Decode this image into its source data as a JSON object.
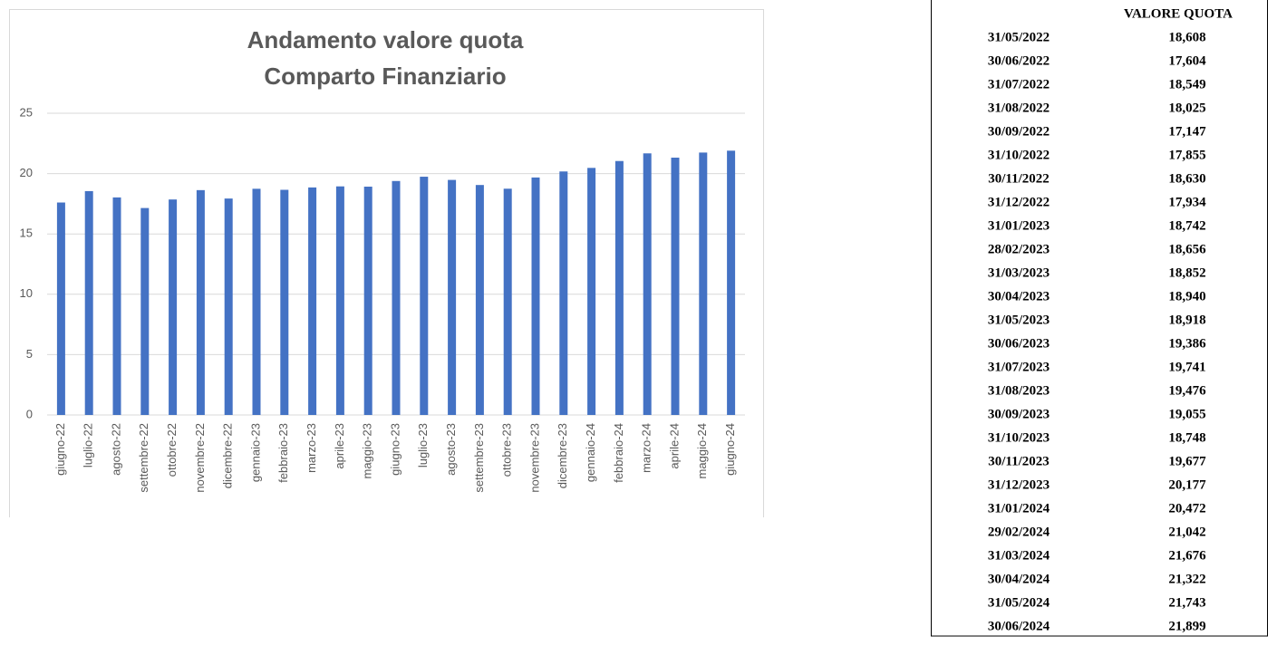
{
  "chart_data": {
    "type": "bar",
    "title": [
      "Andamento valore quota",
      "Comparto Finanziario"
    ],
    "categories": [
      "giugno-22",
      "luglio-22",
      "agosto-22",
      "settembre-22",
      "ottobre-22",
      "novembre-22",
      "dicembre-22",
      "gennaio-23",
      "febbraio-23",
      "marzo-23",
      "aprile-23",
      "maggio-23",
      "giugno-23",
      "luglio-23",
      "agosto-23",
      "settembre-23",
      "ottobre-23",
      "novembre-23",
      "dicembre-23",
      "gennaio-24",
      "febbraio-24",
      "marzo-24",
      "aprile-24",
      "maggio-24",
      "giugno-24"
    ],
    "values": [
      17.604,
      18.549,
      18.025,
      17.147,
      17.855,
      18.63,
      17.934,
      18.742,
      18.656,
      18.852,
      18.94,
      18.918,
      19.386,
      19.741,
      19.476,
      19.055,
      18.748,
      19.677,
      20.177,
      20.472,
      21.042,
      21.676,
      21.322,
      21.743,
      21.899
    ],
    "color": "#4472c4",
    "ylim": [
      0,
      25
    ],
    "yticks": [
      0,
      5,
      10,
      15,
      20,
      25
    ],
    "grid": true
  },
  "table": {
    "header": "VALORE QUOTA",
    "rows": [
      [
        "31/05/2022",
        "18,608"
      ],
      [
        "30/06/2022",
        "17,604"
      ],
      [
        "31/07/2022",
        "18,549"
      ],
      [
        "31/08/2022",
        "18,025"
      ],
      [
        "30/09/2022",
        "17,147"
      ],
      [
        "31/10/2022",
        "17,855"
      ],
      [
        "30/11/2022",
        "18,630"
      ],
      [
        "31/12/2022",
        "17,934"
      ],
      [
        "31/01/2023",
        "18,742"
      ],
      [
        "28/02/2023",
        "18,656"
      ],
      [
        "31/03/2023",
        "18,852"
      ],
      [
        "30/04/2023",
        "18,940"
      ],
      [
        "31/05/2023",
        "18,918"
      ],
      [
        "30/06/2023",
        "19,386"
      ],
      [
        "31/07/2023",
        "19,741"
      ],
      [
        "31/08/2023",
        "19,476"
      ],
      [
        "30/09/2023",
        "19,055"
      ],
      [
        "31/10/2023",
        "18,748"
      ],
      [
        "30/11/2023",
        "19,677"
      ],
      [
        "31/12/2023",
        "20,177"
      ],
      [
        "31/01/2024",
        "20,472"
      ],
      [
        "29/02/2024",
        "21,042"
      ],
      [
        "31/03/2024",
        "21,676"
      ],
      [
        "30/04/2024",
        "21,322"
      ],
      [
        "31/05/2024",
        "21,743"
      ],
      [
        "30/06/2024",
        "21,899"
      ]
    ]
  }
}
